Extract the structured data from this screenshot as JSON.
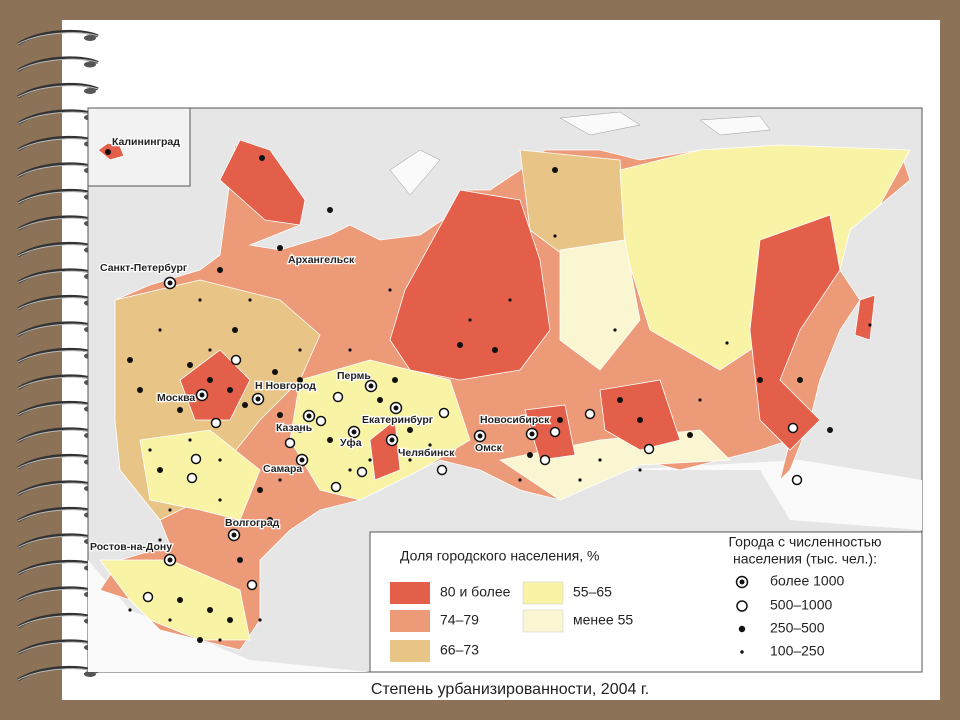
{
  "map": {
    "caption": "Степень урбанизированности, 2004 г.",
    "inset_label": "Калининград",
    "cities": [
      "Санкт-Петербург",
      "Архангельск",
      "Москва",
      "Н Новгород",
      "Пермь",
      "Казань",
      "Екатеринбург",
      "Уфа",
      "Самара",
      "Челябинск",
      "Новосибирск",
      "Омск",
      "Волгоград",
      "Ростов-на-Дону"
    ],
    "legend": {
      "title": "Доля городского населения, %",
      "items": [
        "80 и более",
        "74–79",
        "66–73",
        "55–65",
        "менее 55"
      ]
    },
    "city_legend": {
      "title_lines": [
        "Города с численностью",
        "населения (тыс. чел.):"
      ],
      "items": [
        "более 1000",
        "500–1000",
        "250–500",
        "100–250"
      ]
    }
  }
}
